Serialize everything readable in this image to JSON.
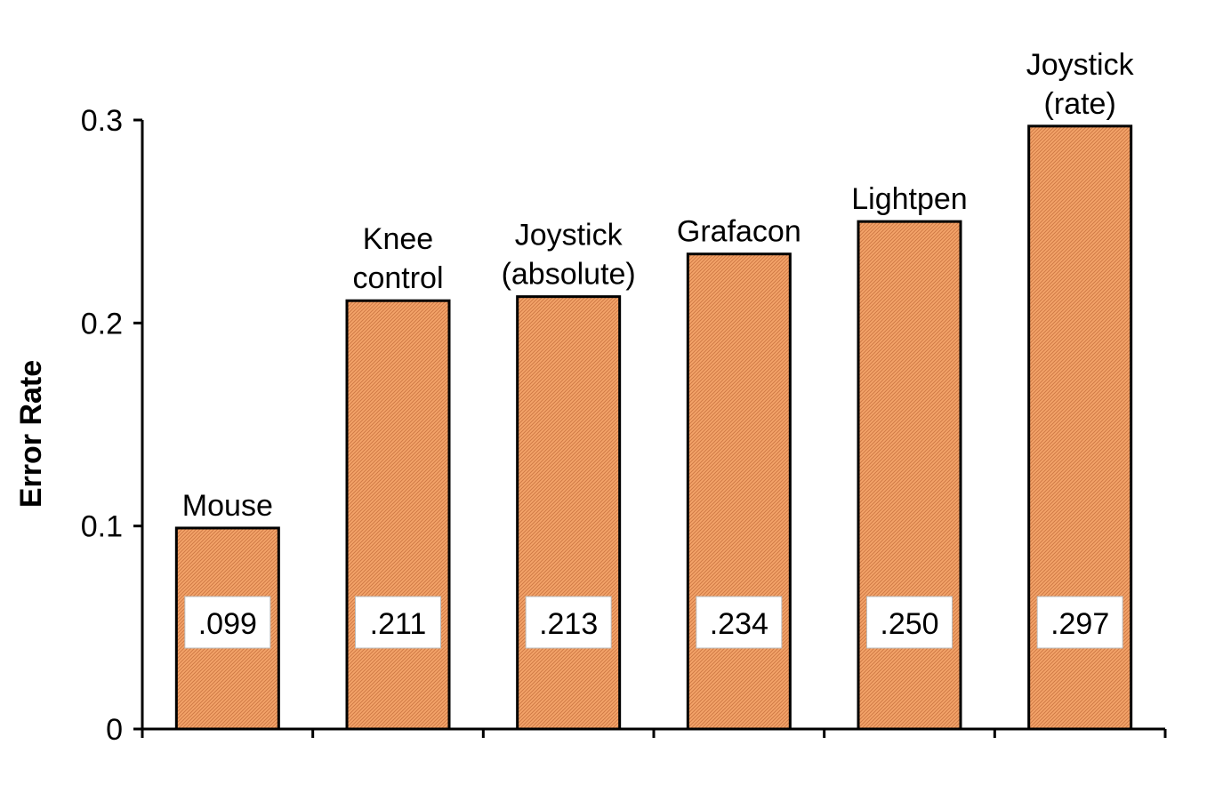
{
  "chart_data": {
    "type": "bar",
    "title": "",
    "xlabel": "",
    "ylabel": "Error Rate",
    "ylim": [
      0,
      0.3
    ],
    "yticks": [
      {
        "value": 0,
        "label": "0"
      },
      {
        "value": 0.1,
        "label": "0.1"
      },
      {
        "value": 0.2,
        "label": "0.2"
      },
      {
        "value": 0.3,
        "label": "0.3"
      }
    ],
    "categories": [
      [
        "Mouse"
      ],
      [
        "Knee",
        "control"
      ],
      [
        "Joystick",
        "(absolute)"
      ],
      [
        "Grafacon"
      ],
      [
        "Lightpen"
      ],
      [
        "Joystick",
        "(rate)"
      ]
    ],
    "values": [
      0.099,
      0.211,
      0.213,
      0.234,
      0.25,
      0.297
    ],
    "value_labels": [
      ".099",
      ".211",
      ".213",
      ".234",
      ".250",
      ".297"
    ],
    "bar_color": "#F4A46A",
    "bar_hatch_color": "#C9703A",
    "grid": false,
    "legend": "none"
  }
}
